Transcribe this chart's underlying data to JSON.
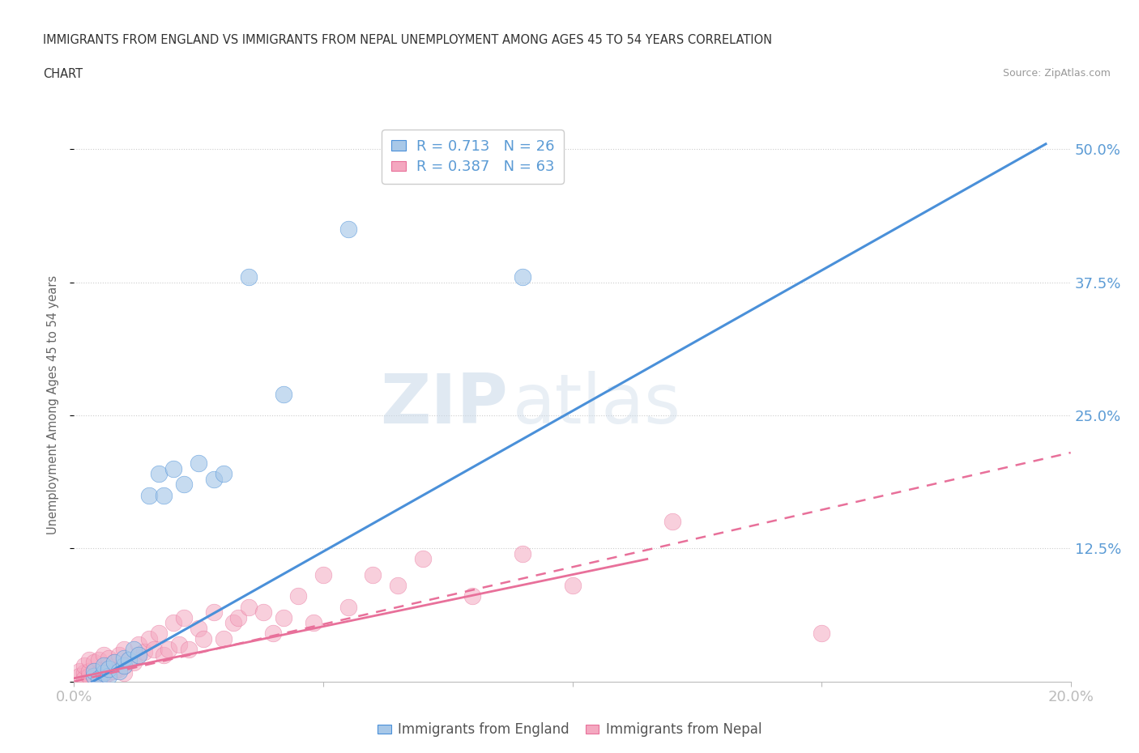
{
  "title_line1": "IMMIGRANTS FROM ENGLAND VS IMMIGRANTS FROM NEPAL UNEMPLOYMENT AMONG AGES 45 TO 54 YEARS CORRELATION",
  "title_line2": "CHART",
  "source": "Source: ZipAtlas.com",
  "ylabel": "Unemployment Among Ages 45 to 54 years",
  "xlim": [
    0.0,
    0.2
  ],
  "ylim": [
    0.0,
    0.52
  ],
  "legend_R_england": "R = 0.713",
  "legend_N_england": "N = 26",
  "legend_R_nepal": "R = 0.387",
  "legend_N_nepal": "N = 63",
  "color_england": "#A8C8E8",
  "color_nepal": "#F4A8C0",
  "color_england_line": "#4A90D9",
  "color_nepal_line": "#E8709A",
  "color_axis_labels": "#5B9BD5",
  "color_title": "#404040",
  "watermark_zip": "ZIP",
  "watermark_atlas": "atlas",
  "england_x": [
    0.004,
    0.004,
    0.005,
    0.006,
    0.006,
    0.007,
    0.007,
    0.008,
    0.009,
    0.01,
    0.01,
    0.011,
    0.012,
    0.013,
    0.015,
    0.017,
    0.018,
    0.02,
    0.022,
    0.025,
    0.028,
    0.03,
    0.035,
    0.042,
    0.055,
    0.09
  ],
  "england_y": [
    0.005,
    0.01,
    0.003,
    0.008,
    0.015,
    0.005,
    0.012,
    0.018,
    0.01,
    0.015,
    0.022,
    0.02,
    0.03,
    0.025,
    0.175,
    0.195,
    0.175,
    0.2,
    0.185,
    0.205,
    0.19,
    0.195,
    0.38,
    0.27,
    0.425,
    0.38
  ],
  "nepal_x": [
    0.001,
    0.001,
    0.002,
    0.002,
    0.002,
    0.003,
    0.003,
    0.003,
    0.004,
    0.004,
    0.004,
    0.005,
    0.005,
    0.005,
    0.006,
    0.006,
    0.006,
    0.007,
    0.007,
    0.007,
    0.008,
    0.008,
    0.009,
    0.009,
    0.01,
    0.01,
    0.01,
    0.011,
    0.012,
    0.013,
    0.013,
    0.014,
    0.015,
    0.016,
    0.017,
    0.018,
    0.019,
    0.02,
    0.021,
    0.022,
    0.023,
    0.025,
    0.026,
    0.028,
    0.03,
    0.032,
    0.033,
    0.035,
    0.038,
    0.04,
    0.042,
    0.045,
    0.048,
    0.05,
    0.055,
    0.06,
    0.065,
    0.07,
    0.08,
    0.09,
    0.1,
    0.12,
    0.15
  ],
  "nepal_y": [
    0.01,
    0.005,
    0.008,
    0.003,
    0.015,
    0.005,
    0.01,
    0.02,
    0.005,
    0.01,
    0.018,
    0.003,
    0.008,
    0.02,
    0.005,
    0.012,
    0.025,
    0.008,
    0.015,
    0.022,
    0.01,
    0.018,
    0.012,
    0.025,
    0.008,
    0.015,
    0.03,
    0.02,
    0.018,
    0.025,
    0.035,
    0.028,
    0.04,
    0.03,
    0.045,
    0.025,
    0.03,
    0.055,
    0.035,
    0.06,
    0.03,
    0.05,
    0.04,
    0.065,
    0.04,
    0.055,
    0.06,
    0.07,
    0.065,
    0.045,
    0.06,
    0.08,
    0.055,
    0.1,
    0.07,
    0.1,
    0.09,
    0.115,
    0.08,
    0.12,
    0.09,
    0.15,
    0.045
  ],
  "background_color": "#FFFFFF",
  "grid_color": "#CCCCCC",
  "eng_line_x0": 0.0,
  "eng_line_x1": 0.195,
  "eng_line_y0": -0.01,
  "eng_line_y1": 0.505,
  "nep_line_x0": 0.0,
  "nep_line_x1": 0.2,
  "nep_line_y0": 0.0,
  "nep_line_y1": 0.215
}
